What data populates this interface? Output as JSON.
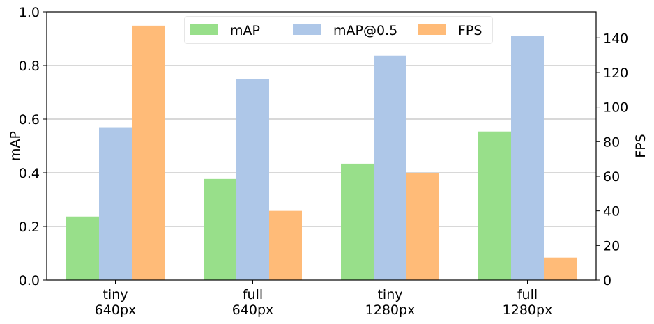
{
  "chart_data": {
    "type": "bar",
    "title": "",
    "categories": [
      [
        "tiny",
        "640px"
      ],
      [
        "full",
        "640px"
      ],
      [
        "tiny",
        "1280px"
      ],
      [
        "full",
        "1280px"
      ]
    ],
    "ylabel_left": "mAP",
    "ylabel_right": "FPS",
    "ylim_left": [
      0,
      1.0
    ],
    "ylim_right": [
      0,
      155
    ],
    "yticks_left": [
      "0.0",
      "0.2",
      "0.4",
      "0.6",
      "0.8",
      "1.0"
    ],
    "yticks_right": [
      "0",
      "20",
      "40",
      "60",
      "80",
      "100",
      "120",
      "140"
    ],
    "grid": "horizontal, left axis",
    "legend_position": "top-center",
    "series": [
      {
        "name": "mAP",
        "axis": "left",
        "color": "#98df8a",
        "values": [
          0.237,
          0.377,
          0.434,
          0.554
        ]
      },
      {
        "name": "mAP@0.5",
        "axis": "left",
        "color": "#aec7e8",
        "values": [
          0.57,
          0.75,
          0.837,
          0.91
        ]
      },
      {
        "name": "FPS",
        "axis": "right",
        "color": "#ffbb78",
        "values": [
          147,
          40,
          62,
          13
        ]
      }
    ]
  }
}
